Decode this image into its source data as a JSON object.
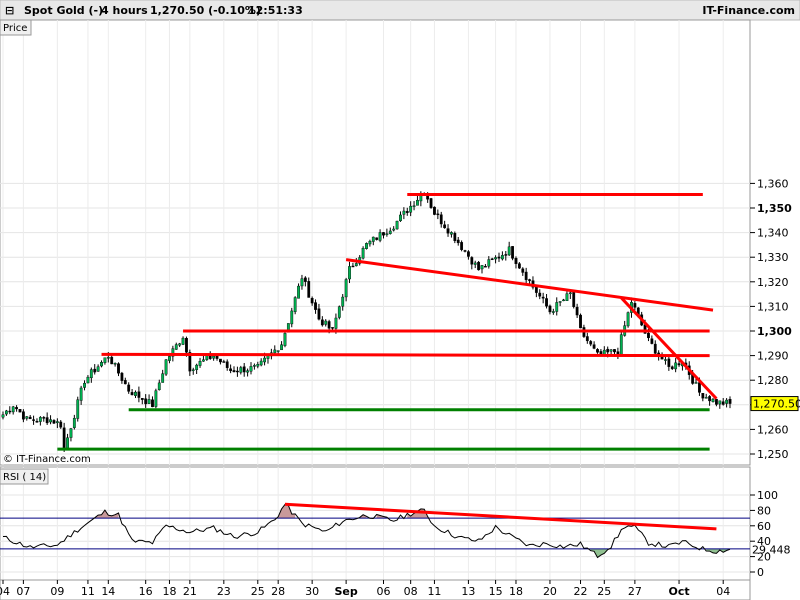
{
  "header": {
    "instrument": "Spot Gold (-)",
    "timeframe": "4 hours",
    "quote": "1,270.50 (-0.10%)",
    "time": "12:51:33",
    "brand": "IT-Finance.com"
  },
  "labels": {
    "price_panel": "Price",
    "rsi_panel": "RSI ( 14)",
    "copyright": "© IT-Finance.com"
  },
  "colors": {
    "candle_up": "#00b050",
    "candle_down": "#000000",
    "trendline_red": "#ff0000",
    "support_green": "#008000",
    "rsi_line": "#000000",
    "rsi_overbought_fill": "#c89a9a",
    "rsi_oversold_fill": "#90c090",
    "rsi_level": "#000080",
    "last_price_tag": "#ffff00"
  },
  "chart_data": [
    {
      "type": "candlestick",
      "panel": "price",
      "ylim": [
        1248,
        1362
      ],
      "y_ticks": [
        "1,250",
        "1,260",
        "1,270",
        "1,280",
        "1,290",
        "1,300",
        "1,310",
        "1,320",
        "1,330",
        "1,340",
        "1,350",
        "1,360"
      ],
      "y_ticks_bold": [
        "1,300",
        "1,350"
      ],
      "last_price": "1,270.50",
      "x_labels": [
        "04",
        "07",
        "09",
        "11",
        "14",
        "16",
        "18",
        "21",
        "23",
        "25",
        "28",
        "30",
        "Sep",
        "06",
        "08",
        "11",
        "13",
        "15",
        "18",
        "20",
        "22",
        "25",
        "27",
        "Oct",
        "04"
      ],
      "x_labels_bold": [
        "Sep",
        "Oct"
      ],
      "x_label_index": [
        0,
        6,
        16,
        25,
        31,
        42,
        49,
        55,
        65,
        75,
        81,
        91,
        101,
        112,
        120,
        127,
        137,
        145,
        151,
        161,
        170,
        177,
        186,
        199,
        212
      ],
      "bar_count": 215,
      "path_keypoints": [
        {
          "i": 0,
          "price": 1266
        },
        {
          "i": 3,
          "price": 1270
        },
        {
          "i": 7,
          "price": 1264
        },
        {
          "i": 14,
          "price": 1264
        },
        {
          "i": 17,
          "price": 1262
        },
        {
          "i": 18,
          "price": 1252
        },
        {
          "i": 24,
          "price": 1280
        },
        {
          "i": 31,
          "price": 1290
        },
        {
          "i": 37,
          "price": 1276
        },
        {
          "i": 44,
          "price": 1270
        },
        {
          "i": 48,
          "price": 1288
        },
        {
          "i": 53,
          "price": 1298
        },
        {
          "i": 55,
          "price": 1285
        },
        {
          "i": 62,
          "price": 1290
        },
        {
          "i": 67,
          "price": 1284
        },
        {
          "i": 75,
          "price": 1285
        },
        {
          "i": 82,
          "price": 1295
        },
        {
          "i": 88,
          "price": 1322
        },
        {
          "i": 93,
          "price": 1305
        },
        {
          "i": 97,
          "price": 1300
        },
        {
          "i": 102,
          "price": 1325
        },
        {
          "i": 107,
          "price": 1335
        },
        {
          "i": 115,
          "price": 1343
        },
        {
          "i": 124,
          "price": 1357
        },
        {
          "i": 127,
          "price": 1348
        },
        {
          "i": 133,
          "price": 1338
        },
        {
          "i": 140,
          "price": 1325
        },
        {
          "i": 149,
          "price": 1333
        },
        {
          "i": 156,
          "price": 1318
        },
        {
          "i": 161,
          "price": 1308
        },
        {
          "i": 167,
          "price": 1315
        },
        {
          "i": 170,
          "price": 1300
        },
        {
          "i": 175,
          "price": 1290
        },
        {
          "i": 181,
          "price": 1292
        },
        {
          "i": 185,
          "price": 1312
        },
        {
          "i": 190,
          "price": 1296
        },
        {
          "i": 196,
          "price": 1285
        },
        {
          "i": 200,
          "price": 1288
        },
        {
          "i": 205,
          "price": 1275
        },
        {
          "i": 210,
          "price": 1271
        },
        {
          "i": 214,
          "price": 1270.5
        }
      ],
      "annotations": [
        {
          "kind": "resistance",
          "color": "red",
          "from": {
            "i": 119,
            "price": 1355.5
          },
          "to": {
            "i": 206,
            "price": 1355.5
          }
        },
        {
          "kind": "trendline",
          "color": "red",
          "from": {
            "i": 101,
            "price": 1329
          },
          "to": {
            "i": 209,
            "price": 1308.5
          }
        },
        {
          "kind": "resistance",
          "color": "red",
          "from": {
            "i": 53,
            "price": 1300
          },
          "to": {
            "i": 208,
            "price": 1300
          }
        },
        {
          "kind": "resistance",
          "color": "red",
          "from": {
            "i": 29,
            "price": 1290.5
          },
          "to": {
            "i": 208,
            "price": 1290
          }
        },
        {
          "kind": "trendline",
          "color": "red",
          "from": {
            "i": 182,
            "price": 1313.5
          },
          "to": {
            "i": 210,
            "price": 1272.5
          }
        },
        {
          "kind": "support",
          "color": "green",
          "from": {
            "i": 37,
            "price": 1268
          },
          "to": {
            "i": 208,
            "price": 1268
          }
        },
        {
          "kind": "support",
          "color": "green",
          "from": {
            "i": 16,
            "price": 1252
          },
          "to": {
            "i": 208,
            "price": 1252
          }
        }
      ]
    },
    {
      "type": "line",
      "panel": "rsi",
      "title": "RSI ( 14)",
      "ylim": [
        0,
        100
      ],
      "y_ticks": [
        "0",
        "20",
        "40",
        "60",
        "80",
        "100"
      ],
      "levels": [
        30,
        70
      ],
      "last_value": "29.448",
      "points": [
        {
          "i": 0,
          "v": 45
        },
        {
          "i": 8,
          "v": 32
        },
        {
          "i": 16,
          "v": 35
        },
        {
          "i": 22,
          "v": 55
        },
        {
          "i": 30,
          "v": 78
        },
        {
          "i": 34,
          "v": 74
        },
        {
          "i": 38,
          "v": 40
        },
        {
          "i": 44,
          "v": 38
        },
        {
          "i": 48,
          "v": 60
        },
        {
          "i": 55,
          "v": 52
        },
        {
          "i": 62,
          "v": 57
        },
        {
          "i": 68,
          "v": 46
        },
        {
          "i": 75,
          "v": 52
        },
        {
          "i": 80,
          "v": 68
        },
        {
          "i": 83,
          "v": 88
        },
        {
          "i": 88,
          "v": 63
        },
        {
          "i": 95,
          "v": 52
        },
        {
          "i": 100,
          "v": 66
        },
        {
          "i": 107,
          "v": 74
        },
        {
          "i": 115,
          "v": 67
        },
        {
          "i": 120,
          "v": 76
        },
        {
          "i": 124,
          "v": 80
        },
        {
          "i": 127,
          "v": 60
        },
        {
          "i": 134,
          "v": 45
        },
        {
          "i": 140,
          "v": 40
        },
        {
          "i": 145,
          "v": 58
        },
        {
          "i": 150,
          "v": 45
        },
        {
          "i": 155,
          "v": 34
        },
        {
          "i": 160,
          "v": 37
        },
        {
          "i": 165,
          "v": 33
        },
        {
          "i": 170,
          "v": 36
        },
        {
          "i": 175,
          "v": 21
        },
        {
          "i": 179,
          "v": 34
        },
        {
          "i": 183,
          "v": 60
        },
        {
          "i": 186,
          "v": 58
        },
        {
          "i": 190,
          "v": 38
        },
        {
          "i": 196,
          "v": 33
        },
        {
          "i": 200,
          "v": 39
        },
        {
          "i": 206,
          "v": 30
        },
        {
          "i": 210,
          "v": 27
        },
        {
          "i": 214,
          "v": 29.448
        }
      ],
      "annotations": [
        {
          "kind": "trendline",
          "color": "red",
          "from": {
            "i": 83,
            "v": 88
          },
          "to": {
            "i": 210,
            "v": 56
          }
        }
      ]
    }
  ]
}
